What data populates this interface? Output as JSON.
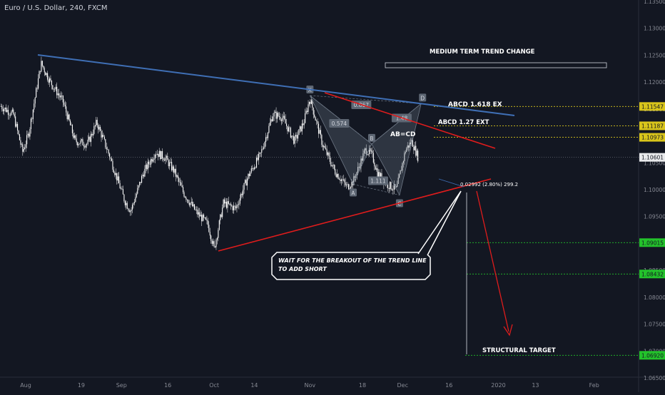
{
  "header": {
    "symbol_title": "Euro / U.S. Dollar, 240, FXCM"
  },
  "chart_data": {
    "type": "candlestick",
    "title": "Euro / U.S. Dollar, 240, FXCM",
    "current_price": "1.10601",
    "y_axis": {
      "range": [
        1.065,
        1.135
      ],
      "ticks": [
        "1.13500",
        "1.13000",
        "1.12500",
        "1.12000",
        "1.11500",
        "1.11000",
        "1.10500",
        "1.10000",
        "1.09500",
        "1.09000",
        "1.08500",
        "1.08000",
        "1.07500",
        "1.07000",
        "1.06500"
      ]
    },
    "x_axis": {
      "ticks": [
        {
          "label": "Aug",
          "date": "2019-08-01"
        },
        {
          "label": "19",
          "date": "2019-08-19"
        },
        {
          "label": "Sep",
          "date": "2019-09-01"
        },
        {
          "label": "16",
          "date": "2019-09-16"
        },
        {
          "label": "Oct",
          "date": "2019-10-01"
        },
        {
          "label": "14",
          "date": "2019-10-14"
        },
        {
          "label": "Nov",
          "date": "2019-11-01"
        },
        {
          "label": "18",
          "date": "2019-11-18"
        },
        {
          "label": "Dec",
          "date": "2019-12-01"
        },
        {
          "label": "16",
          "date": "2019-12-16"
        },
        {
          "label": "2020",
          "date": "2020-01-01"
        },
        {
          "label": "13",
          "date": "2020-01-13"
        },
        {
          "label": "Feb",
          "date": "2020-02-01"
        }
      ]
    },
    "price_path": [
      {
        "date": "2019-07-24",
        "price": 1.1155
      },
      {
        "date": "2019-07-28",
        "price": 1.114
      },
      {
        "date": "2019-07-31",
        "price": 1.107
      },
      {
        "date": "2019-08-02",
        "price": 1.1105
      },
      {
        "date": "2019-08-06",
        "price": 1.1235
      },
      {
        "date": "2019-08-09",
        "price": 1.12
      },
      {
        "date": "2019-08-13",
        "price": 1.1165
      },
      {
        "date": "2019-08-17",
        "price": 1.109
      },
      {
        "date": "2019-08-21",
        "price": 1.1085
      },
      {
        "date": "2019-08-24",
        "price": 1.1125
      },
      {
        "date": "2019-08-28",
        "price": 1.1065
      },
      {
        "date": "2019-09-02",
        "price": 1.098
      },
      {
        "date": "2019-09-04",
        "price": 1.096
      },
      {
        "date": "2019-09-08",
        "price": 1.103
      },
      {
        "date": "2019-09-12",
        "price": 1.107
      },
      {
        "date": "2019-09-15",
        "price": 1.106
      },
      {
        "date": "2019-09-18",
        "price": 1.1035
      },
      {
        "date": "2019-09-21",
        "price": 1.0995
      },
      {
        "date": "2019-09-25",
        "price": 1.096
      },
      {
        "date": "2019-09-29",
        "price": 1.0935
      },
      {
        "date": "2019-10-01",
        "price": 1.089
      },
      {
        "date": "2019-10-04",
        "price": 1.0975
      },
      {
        "date": "2019-10-08",
        "price": 1.0965
      },
      {
        "date": "2019-10-12",
        "price": 1.1025
      },
      {
        "date": "2019-10-16",
        "price": 1.1065
      },
      {
        "date": "2019-10-20",
        "price": 1.114
      },
      {
        "date": "2019-10-23",
        "price": 1.1135
      },
      {
        "date": "2019-10-27",
        "price": 1.109
      },
      {
        "date": "2019-10-30",
        "price": 1.1125
      },
      {
        "date": "2019-11-01",
        "price": 1.117
      },
      {
        "date": "2019-11-05",
        "price": 1.1085
      },
      {
        "date": "2019-11-09",
        "price": 1.1035
      },
      {
        "date": "2019-11-13",
        "price": 1.1005
      },
      {
        "date": "2019-11-15",
        "price": 1.1015
      },
      {
        "date": "2019-11-19",
        "price": 1.1075
      },
      {
        "date": "2019-11-21",
        "price": 1.1065
      },
      {
        "date": "2019-11-23",
        "price": 1.103
      },
      {
        "date": "2019-11-26",
        "price": 1.101
      },
      {
        "date": "2019-11-29",
        "price": 1.1
      },
      {
        "date": "2019-12-02",
        "price": 1.1075
      },
      {
        "date": "2019-12-04",
        "price": 1.109
      },
      {
        "date": "2019-12-06",
        "price": 1.106
      }
    ],
    "price_lines": [
      {
        "label": "1.11547",
        "value": 1.11547,
        "color": "#d9c51b"
      },
      {
        "label": "1.11187",
        "value": 1.11187,
        "color": "#d9c51b"
      },
      {
        "label": "1.10973",
        "value": 1.10973,
        "color": "#d9c51b"
      },
      {
        "label": "1.09015",
        "value": 1.09015,
        "color": "#23c22b"
      },
      {
        "label": "1.08432",
        "value": 1.08432,
        "color": "#23c22b"
      },
      {
        "label": "1.06920",
        "value": 1.0692,
        "color": "#23c22b"
      }
    ],
    "annotations": {
      "medium_trend": "MEDIUM TERM TREND CHANGE",
      "abcd_1618": "ABCD 1.618 EX",
      "abcd_127": "ABCD 1.27 EXT",
      "ab_cd": "AB=CD",
      "measure": "0.02992 (2.80%) 299.2",
      "callout_line1": "WAIT FOR THE BREAKOUT OF THE TREND LINE",
      "callout_line2": "TO ADD SHORT",
      "structural_target": "STRUCTURAL TARGET"
    },
    "harmonic": {
      "points": [
        {
          "label": "X",
          "date": "2019-11-01",
          "price": 1.1175
        },
        {
          "label": "A",
          "date": "2019-11-15",
          "price": 1.101
        },
        {
          "label": "B",
          "date": "2019-11-21",
          "price": 1.1085
        },
        {
          "label": "C",
          "date": "2019-11-30",
          "price": 1.099
        },
        {
          "label": "D",
          "date": "2019-12-07",
          "price": 1.116
        }
      ],
      "ratios": [
        "0.867",
        "0.574",
        "1.111",
        "1.48"
      ]
    },
    "colors": {
      "background": "#131722",
      "candle": "#ffffff",
      "trend_blue": "#3f6fb5",
      "trend_red": "#e01c1c",
      "pattern": "#6e7886",
      "arrow_red": "#e01c1c"
    }
  }
}
